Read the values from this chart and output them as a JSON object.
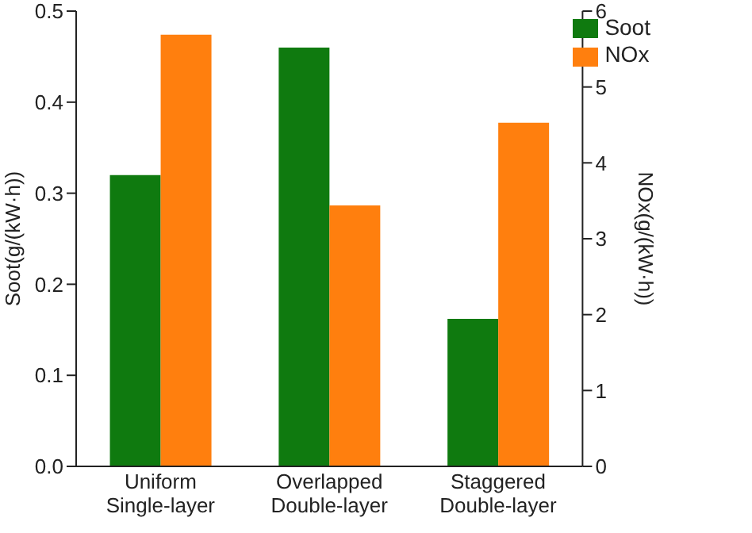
{
  "chart_data": {
    "type": "bar",
    "ylabel": "Soot(g/(kW·h))",
    "y2label": "NOx(g/(kW·h))",
    "categories": [
      "Uniform\nSingle-layer",
      "Overlapped\nDouble-layer",
      "Staggered\nDouble-layer"
    ],
    "series": [
      {
        "name": "Soot",
        "color": "#0f7a0f",
        "values": [
          0.32,
          0.46,
          0.162
        ]
      },
      {
        "name": "NOx",
        "color": "#ff7f0e",
        "values": [
          5.69,
          3.44,
          4.53
        ],
        "axis": "y2"
      }
    ],
    "ylim": [
      0,
      0.5
    ],
    "yticks": [
      "0.0",
      0.1,
      0.2,
      0.3,
      0.4,
      0.5
    ],
    "y2lim": [
      0,
      6
    ],
    "y2ticks": [
      0,
      1,
      2,
      3,
      4,
      5,
      6
    ],
    "legend": "top right",
    "grid": false
  }
}
